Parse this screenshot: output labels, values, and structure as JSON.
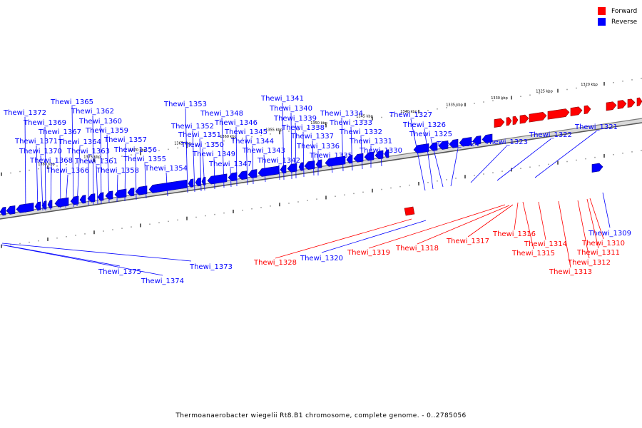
{
  "legend": {
    "forward_label": "Forward",
    "reverse_label": "Reverse",
    "forward_color": "#ff0000",
    "reverse_color": "#0000ff"
  },
  "caption": "Thermoanaerobacter wiegelii Rt8.B1 chromosome, complete genome. - 0..2785056",
  "axis_labels": [
    "1380 kbp",
    "1375 kbp",
    "1370 kbp",
    "1365 kbp",
    "1360 kbp",
    "1355 kbp",
    "1350 kbp",
    "1345 kbp",
    "1340 kbp",
    "1335 kbp",
    "1330 kbp",
    "1325 kbp",
    "1320 kbp"
  ],
  "reverse_genes_upper": [
    "Thewi_1372",
    "Thewi_1371",
    "Thewi_1370",
    "Thewi_1369",
    "Thewi_1368",
    "Thewi_1367",
    "Thewi_1366",
    "Thewi_1365",
    "Thewi_1364",
    "Thewi_1363",
    "Thewi_1362",
    "Thewi_1361",
    "Thewi_1360",
    "Thewi_1359",
    "Thewi_1358",
    "Thewi_1357",
    "Thewi_1356",
    "Thewi_1355",
    "Thewi_1354",
    "Thewi_1353",
    "Thewi_1352",
    "Thewi_1351",
    "Thewi_1350",
    "Thewi_1349",
    "Thewi_1348",
    "Thewi_1347",
    "Thewi_1346",
    "Thewi_1345",
    "Thewi_1344",
    "Thewi_1343",
    "Thewi_1342",
    "Thewi_1341",
    "Thewi_1340",
    "Thewi_1339",
    "Thewi_1338",
    "Thewi_1337",
    "Thewi_1336",
    "Thewi_1335",
    "Thewi_1334",
    "Thewi_1333",
    "Thewi_1332",
    "Thewi_1331",
    "Thewi_1330",
    "Thewi_1327",
    "Thewi_1326",
    "Thewi_1325",
    "Thewi_1324",
    "Thewi_1323",
    "Thewi_1322",
    "Thewi_1321"
  ],
  "reverse_genes_lower": [
    "Thewi_1375",
    "Thewi_1374",
    "Thewi_1373",
    "Thewi_1320",
    "Thewi_1309"
  ],
  "forward_genes": [
    "Thewi_1328",
    "Thewi_1319",
    "Thewi_1318",
    "Thewi_1317",
    "Thewi_1316",
    "Thewi_1315",
    "Thewi_1314",
    "Thewi_1313",
    "Thewi_1312",
    "Thewi_1311",
    "Thewi_1310"
  ]
}
